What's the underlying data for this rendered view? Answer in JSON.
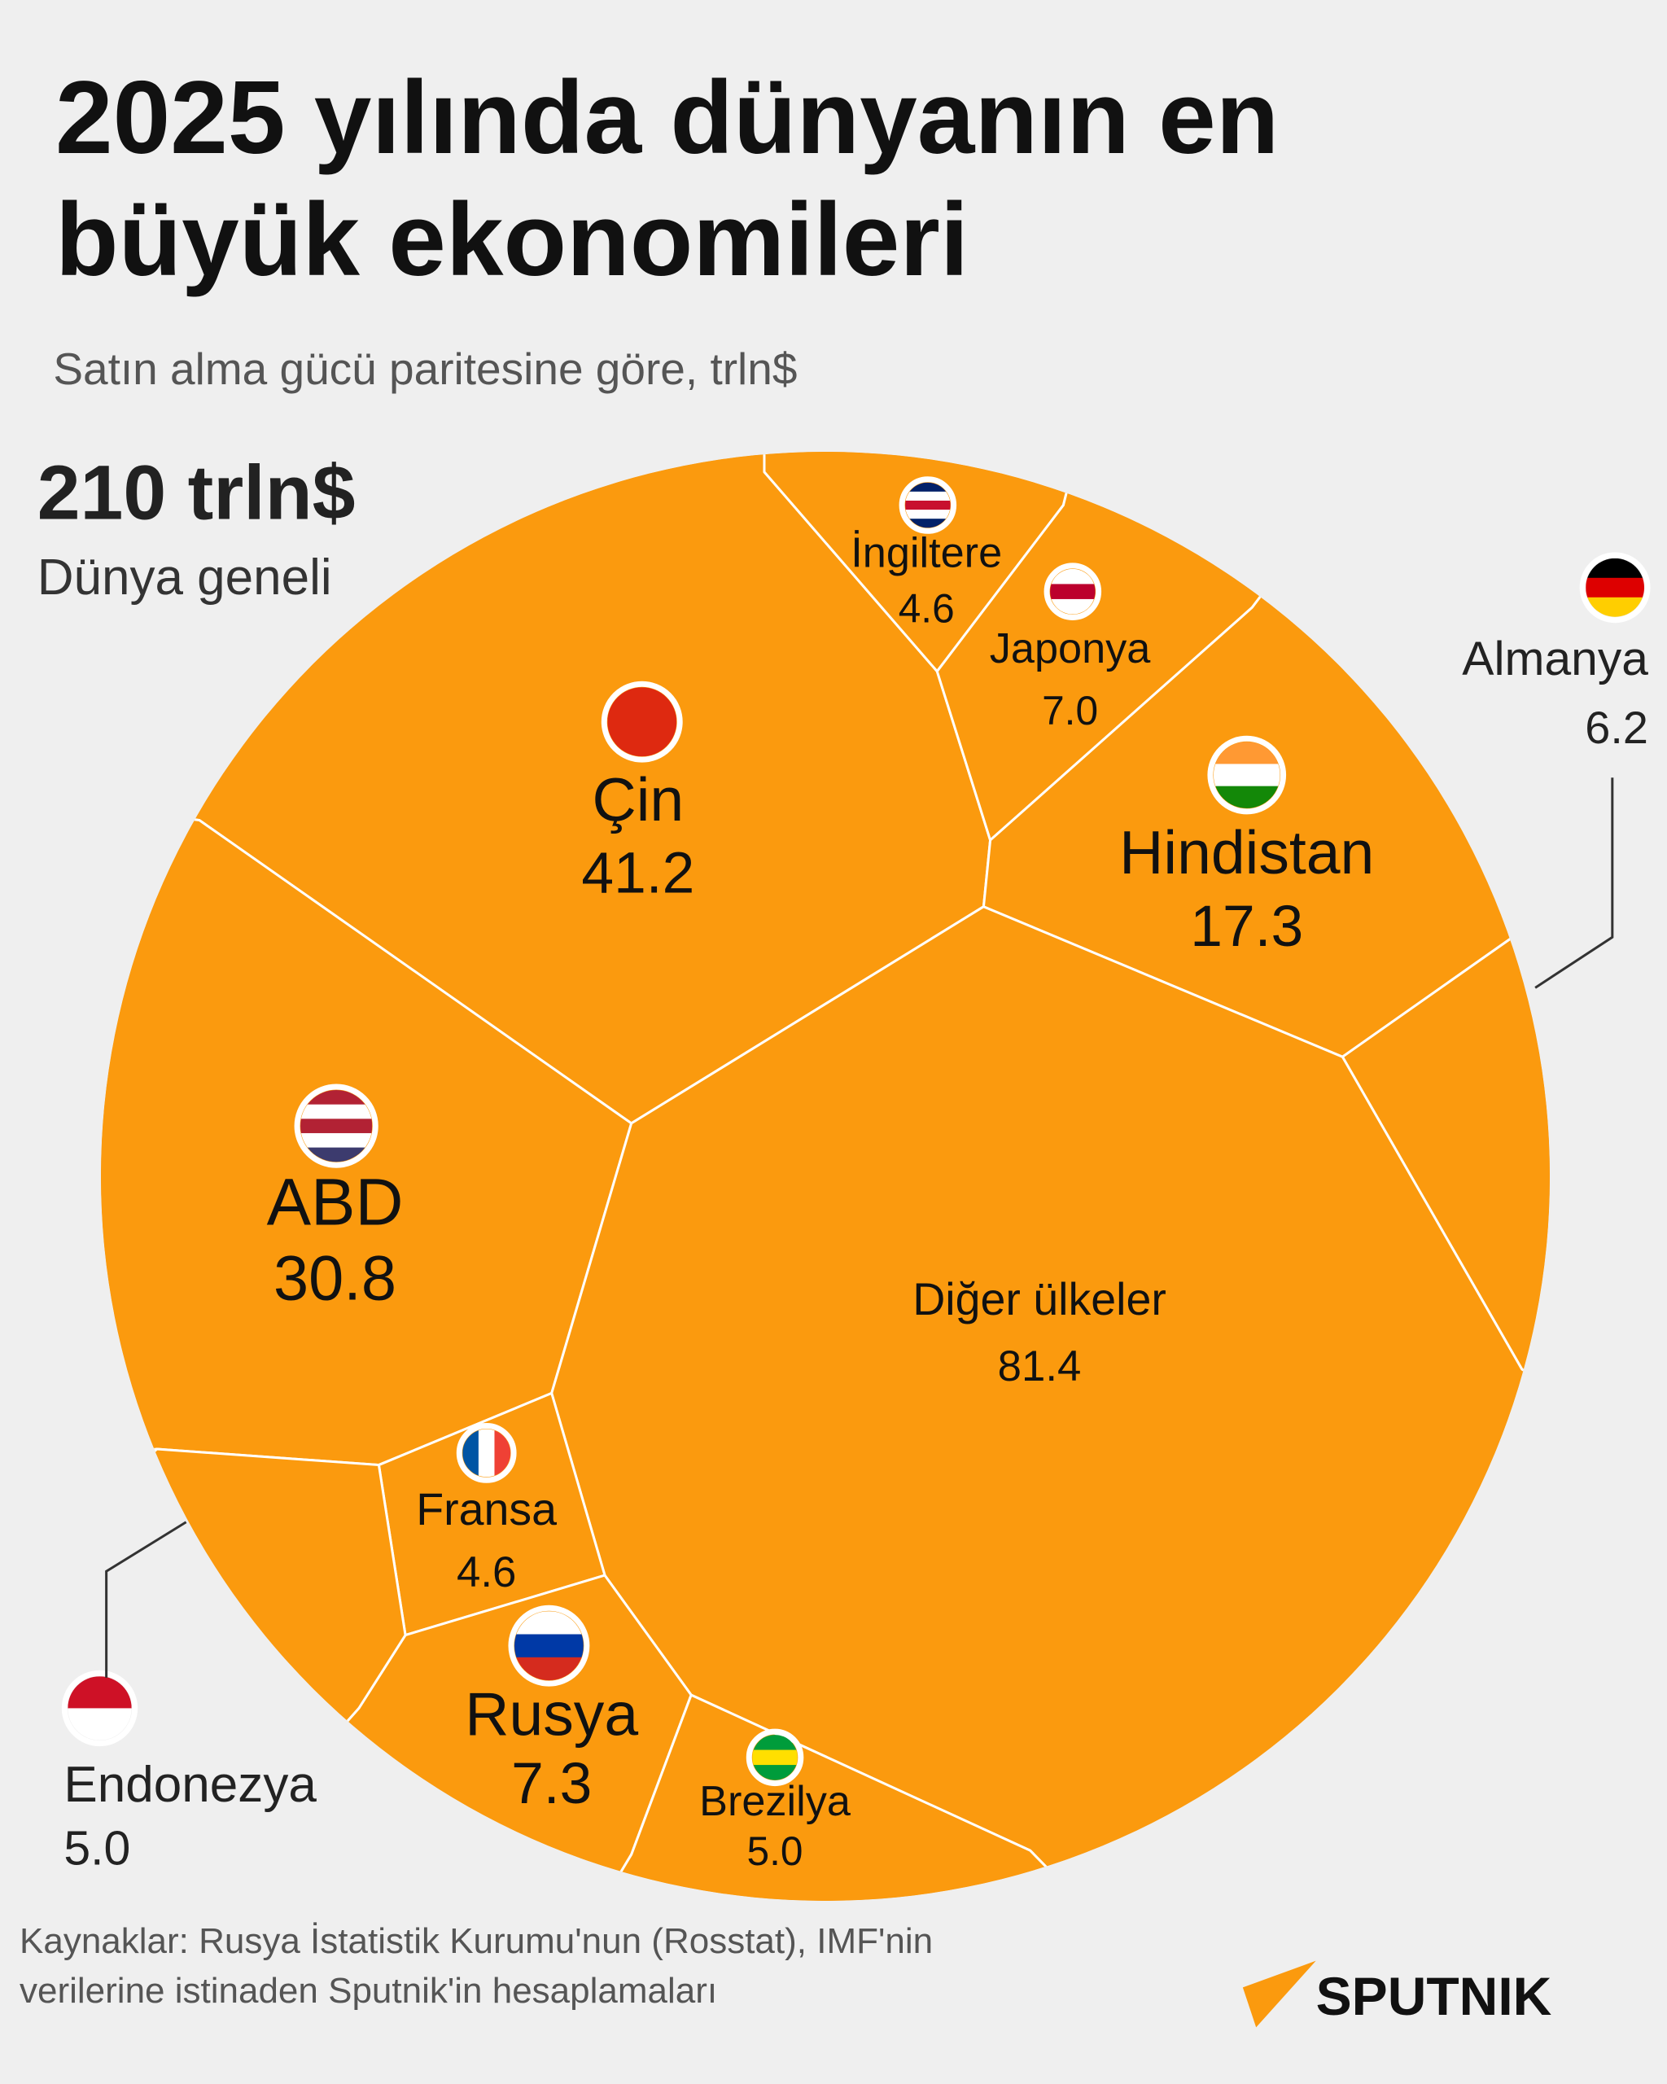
{
  "chart_data": {
    "type": "voronoi-treemap",
    "title": "2025 yılında dünyanın en büyük ekonomileri",
    "subtitle": "Satın alma gücü paritesine göre, trln$",
    "total": 210,
    "total_label": "210 trln$",
    "total_caption": "Dünya geneli",
    "categories": [
      "Çin",
      "İngiltere",
      "Japonya",
      "Hindistan",
      "Almanya",
      "ABD",
      "Diğer ülkeler",
      "Fransa",
      "Rusya",
      "Brezilya",
      "Endonezya"
    ],
    "values": [
      41.2,
      4.6,
      7.0,
      17.3,
      6.2,
      30.8,
      81.4,
      4.6,
      7.3,
      5.0,
      5.0
    ],
    "value_labels": [
      "41.2",
      "4.6",
      "7.0",
      "17.3",
      "6.2",
      "30.8",
      "81.4",
      "4.6",
      "7.3",
      "5.0",
      "5.0"
    ],
    "color": "#fb9a0e",
    "source": "Kaynaklar: Rusya İstatistik Kurumu'nun (Rosstat), IMF'nin verilerine istinaden Sputnik'in hesaplamaları",
    "logo": "SPUTNIK"
  }
}
